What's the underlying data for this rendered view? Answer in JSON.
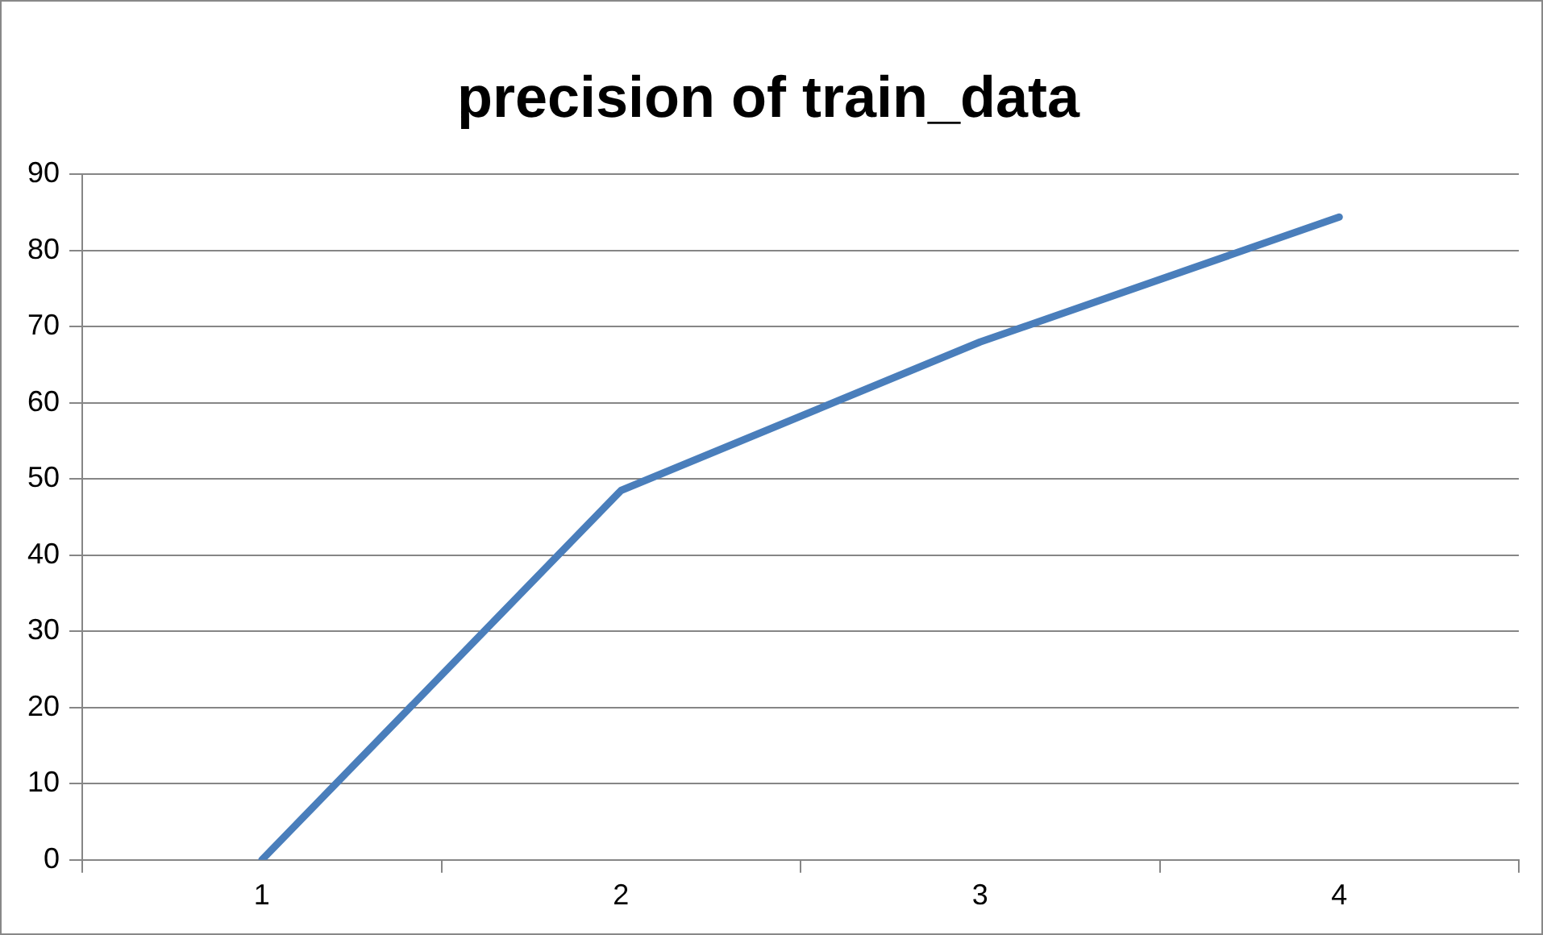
{
  "chart_data": {
    "type": "line",
    "title": "precision of train_data",
    "categories": [
      "1",
      "2",
      "3",
      "4"
    ],
    "series": [
      {
        "color": "#4a7ebb",
        "values": [
          0,
          48.5,
          68,
          84.4
        ]
      }
    ],
    "ylim": [
      0,
      90
    ],
    "yticks": [
      0,
      10,
      20,
      30,
      40,
      50,
      60,
      70,
      80,
      90
    ],
    "grid": "y",
    "legend": false,
    "marker": "none",
    "line_style": "solid"
  }
}
